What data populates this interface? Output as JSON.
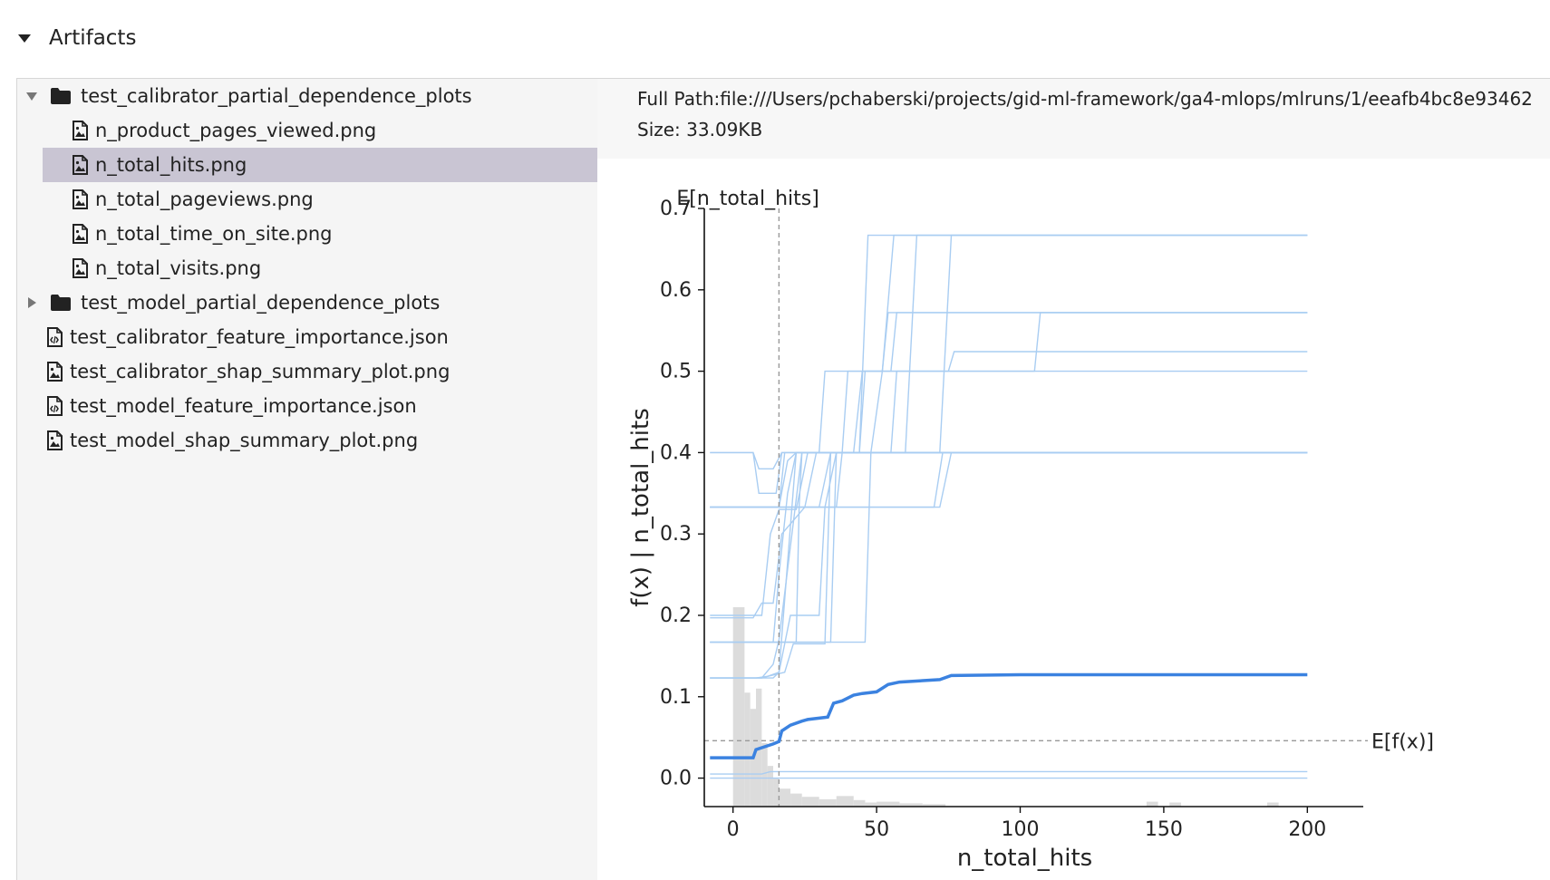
{
  "section": {
    "title": "Artifacts",
    "icon": "caret-down-icon"
  },
  "tree": {
    "items": [
      {
        "label": "test_calibrator_partial_dependence_plots",
        "type": "folder",
        "expanded": true
      },
      {
        "label": "n_product_pages_viewed.png",
        "type": "image"
      },
      {
        "label": "n_total_hits.png",
        "type": "image",
        "selected": true
      },
      {
        "label": "n_total_pageviews.png",
        "type": "image"
      },
      {
        "label": "n_total_time_on_site.png",
        "type": "image"
      },
      {
        "label": "n_total_visits.png",
        "type": "image"
      },
      {
        "label": "test_model_partial_dependence_plots",
        "type": "folder",
        "expanded": false
      },
      {
        "label": "test_calibrator_feature_importance.json",
        "type": "code"
      },
      {
        "label": "test_calibrator_shap_summary_plot.png",
        "type": "image"
      },
      {
        "label": "test_model_feature_importance.json",
        "type": "code"
      },
      {
        "label": "test_model_shap_summary_plot.png",
        "type": "image"
      }
    ],
    "selected_color": "#c9c5d3"
  },
  "detail": {
    "full_path": "Full Path:file:///Users/pchaberski/projects/gid-ml-framework/ga4-mlops/mlruns/1/eeafb4bc8e93462",
    "size": "Size: 33.09KB"
  },
  "chart_data": {
    "type": "line",
    "xlabel": "n_total_hits",
    "ylabel": "f(x) | n_total_hits",
    "xlim": [
      -10,
      210
    ],
    "ylim": [
      -0.035,
      0.7
    ],
    "xticks": [
      0,
      50,
      100,
      150,
      200
    ],
    "yticks": [
      0.0,
      0.1,
      0.2,
      0.3,
      0.4,
      0.5,
      0.6,
      0.7
    ],
    "annotations": {
      "expected_x_label": "E[n_total_hits]",
      "expected_x_value": 16,
      "expected_fx_label": "E[f(x)]",
      "expected_fx_value": 0.046
    },
    "colors": {
      "ice": "#a9cdf2",
      "mean": "#3b82e0",
      "histogram": "#dcdcdc",
      "reference": "#999999"
    },
    "grid": false,
    "histogram": {
      "bins": [
        [
          0,
          4,
          0.245
        ],
        [
          4,
          6,
          0.14
        ],
        [
          6,
          8,
          0.12
        ],
        [
          8,
          10,
          0.145
        ],
        [
          10,
          12,
          0.078
        ],
        [
          12,
          14,
          0.05
        ],
        [
          14,
          16,
          0.035
        ],
        [
          16,
          20,
          0.022
        ],
        [
          20,
          24,
          0.016
        ],
        [
          24,
          30,
          0.012
        ],
        [
          30,
          36,
          0.009
        ],
        [
          36,
          42,
          0.013
        ],
        [
          42,
          46,
          0.008
        ],
        [
          46,
          50,
          0.005
        ],
        [
          50,
          58,
          0.006
        ],
        [
          58,
          66,
          0.004
        ],
        [
          66,
          74,
          0.003
        ],
        [
          144,
          148,
          0.006
        ],
        [
          152,
          156,
          0.005
        ],
        [
          186,
          190,
          0.005
        ]
      ]
    },
    "mean_curve": [
      [
        -8,
        0.025
      ],
      [
        7,
        0.025
      ],
      [
        8,
        0.035
      ],
      [
        14,
        0.042
      ],
      [
        16,
        0.045
      ],
      [
        17,
        0.058
      ],
      [
        20,
        0.065
      ],
      [
        24,
        0.07
      ],
      [
        26,
        0.072
      ],
      [
        33,
        0.075
      ],
      [
        35,
        0.092
      ],
      [
        38,
        0.095
      ],
      [
        42,
        0.102
      ],
      [
        45,
        0.104
      ],
      [
        50,
        0.106
      ],
      [
        54,
        0.115
      ],
      [
        58,
        0.118
      ],
      [
        72,
        0.121
      ],
      [
        76,
        0.126
      ],
      [
        100,
        0.127
      ],
      [
        200,
        0.127
      ]
    ],
    "ice_curves": [
      [
        [
          -8,
          0.4
        ],
        [
          7,
          0.4
        ],
        [
          9,
          0.35
        ],
        [
          15,
          0.35
        ],
        [
          17,
          0.4
        ],
        [
          200,
          0.4
        ]
      ],
      [
        [
          -8,
          0.4
        ],
        [
          7,
          0.4
        ],
        [
          9,
          0.38
        ],
        [
          14,
          0.38
        ],
        [
          17,
          0.4
        ],
        [
          200,
          0.4
        ]
      ],
      [
        [
          -8,
          0.333
        ],
        [
          10,
          0.333
        ],
        [
          16,
          0.333
        ],
        [
          18,
          0.4
        ],
        [
          200,
          0.4
        ]
      ],
      [
        [
          -8,
          0.333
        ],
        [
          16,
          0.333
        ],
        [
          19,
          0.39
        ],
        [
          22,
          0.4
        ],
        [
          200,
          0.4
        ]
      ],
      [
        [
          -8,
          0.333
        ],
        [
          30,
          0.333
        ],
        [
          34,
          0.4
        ],
        [
          200,
          0.4
        ]
      ],
      [
        [
          -8,
          0.333
        ],
        [
          36,
          0.333
        ],
        [
          38,
          0.4
        ],
        [
          200,
          0.4
        ]
      ],
      [
        [
          -8,
          0.333
        ],
        [
          72,
          0.333
        ],
        [
          76,
          0.4
        ],
        [
          200,
          0.4
        ]
      ],
      [
        [
          -8,
          0.333
        ],
        [
          70,
          0.333
        ],
        [
          73,
          0.4
        ],
        [
          200,
          0.4
        ]
      ],
      [
        [
          -8,
          0.2
        ],
        [
          7,
          0.2
        ],
        [
          10,
          0.2
        ],
        [
          13,
          0.3
        ],
        [
          16,
          0.33
        ],
        [
          22,
          0.33
        ],
        [
          26,
          0.4
        ],
        [
          200,
          0.4
        ]
      ],
      [
        [
          -8,
          0.197
        ],
        [
          7,
          0.197
        ],
        [
          10,
          0.215
        ],
        [
          14,
          0.215
        ],
        [
          17,
          0.3
        ],
        [
          25,
          0.333
        ],
        [
          29,
          0.4
        ],
        [
          42,
          0.4
        ],
        [
          45,
          0.5
        ],
        [
          75,
          0.5
        ],
        [
          77,
          0.524
        ],
        [
          200,
          0.524
        ]
      ],
      [
        [
          -8,
          0.167
        ],
        [
          10,
          0.167
        ],
        [
          14,
          0.167
        ],
        [
          16,
          0.25
        ],
        [
          19,
          0.35
        ],
        [
          22,
          0.4
        ],
        [
          44,
          0.4
        ],
        [
          46,
          0.5
        ],
        [
          75,
          0.5
        ],
        [
          76,
          0.5
        ],
        [
          200,
          0.5
        ]
      ],
      [
        [
          -8,
          0.167
        ],
        [
          14,
          0.167
        ],
        [
          16,
          0.167
        ],
        [
          22,
          0.167
        ],
        [
          23,
          0.333
        ],
        [
          24,
          0.4
        ],
        [
          38,
          0.4
        ],
        [
          40,
          0.5
        ],
        [
          52,
          0.5
        ],
        [
          54,
          0.572
        ],
        [
          200,
          0.572
        ]
      ],
      [
        [
          -8,
          0.167
        ],
        [
          16,
          0.167
        ],
        [
          34,
          0.167
        ],
        [
          36,
          0.4
        ],
        [
          44,
          0.4
        ],
        [
          47,
          0.667
        ],
        [
          200,
          0.667
        ]
      ],
      [
        [
          -8,
          0.167
        ],
        [
          18,
          0.167
        ],
        [
          20,
          0.167
        ],
        [
          46,
          0.167
        ],
        [
          48,
          0.4
        ],
        [
          52,
          0.5
        ],
        [
          56,
          0.667
        ],
        [
          200,
          0.667
        ]
      ],
      [
        [
          -8,
          0.123
        ],
        [
          8,
          0.123
        ],
        [
          12,
          0.125
        ],
        [
          16,
          0.13
        ],
        [
          20,
          0.2
        ],
        [
          30,
          0.2
        ],
        [
          32,
          0.333
        ],
        [
          36,
          0.4
        ],
        [
          60,
          0.4
        ],
        [
          64,
          0.667
        ],
        [
          200,
          0.667
        ]
      ],
      [
        [
          -8,
          0.123
        ],
        [
          14,
          0.123
        ],
        [
          16,
          0.13
        ],
        [
          22,
          0.4
        ],
        [
          30,
          0.4
        ],
        [
          32,
          0.5
        ],
        [
          55,
          0.5
        ],
        [
          57,
          0.572
        ],
        [
          200,
          0.572
        ]
      ],
      [
        [
          -8,
          0.123
        ],
        [
          10,
          0.123
        ],
        [
          12,
          0.125
        ],
        [
          18,
          0.13
        ],
        [
          21,
          0.165
        ],
        [
          32,
          0.165
        ],
        [
          34,
          0.4
        ],
        [
          55,
          0.4
        ],
        [
          57,
          0.5
        ],
        [
          105,
          0.5
        ],
        [
          107,
          0.572
        ],
        [
          200,
          0.572
        ]
      ],
      [
        [
          -8,
          0.0
        ],
        [
          10,
          0.0
        ],
        [
          12,
          0.0
        ],
        [
          200,
          0.0
        ]
      ],
      [
        [
          -8,
          0.005
        ],
        [
          10,
          0.005
        ],
        [
          13,
          0.008
        ],
        [
          200,
          0.008
        ]
      ],
      [
        [
          -8,
          0.123
        ],
        [
          10,
          0.123
        ],
        [
          14,
          0.14
        ],
        [
          16,
          0.17
        ],
        [
          24,
          0.4
        ],
        [
          72,
          0.4
        ],
        [
          76,
          0.667
        ],
        [
          200,
          0.667
        ]
      ]
    ]
  }
}
